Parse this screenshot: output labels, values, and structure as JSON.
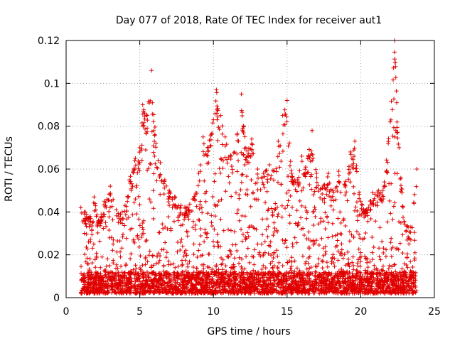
{
  "chart_data": {
    "type": "scatter",
    "title": "Day 077 of 2018, Rate Of TEC Index for receiver aut1",
    "xlabel": "GPS time / hours",
    "ylabel": "ROTI / TECUs",
    "xlim": [
      0,
      25
    ],
    "ylim": [
      0,
      0.12
    ],
    "xticks": [
      0,
      5,
      10,
      15,
      20,
      25
    ],
    "yticks": [
      0,
      0.02,
      0.04,
      0.06,
      0.08,
      0.1,
      0.12
    ],
    "grid": true,
    "marker": "plus",
    "series": [
      {
        "name": "aut1",
        "color": "#e00000",
        "x_range": [
          1.0,
          23.8
        ],
        "baseline_min": 0.002,
        "baseline_max": 0.012,
        "envelope": [
          [
            1.0,
            0.042
          ],
          [
            1.3,
            0.04
          ],
          [
            1.6,
            0.037
          ],
          [
            1.9,
            0.047
          ],
          [
            2.2,
            0.036
          ],
          [
            2.6,
            0.045
          ],
          [
            3.0,
            0.052
          ],
          [
            3.4,
            0.041
          ],
          [
            3.8,
            0.04
          ],
          [
            4.0,
            0.043
          ],
          [
            4.3,
            0.055
          ],
          [
            4.7,
            0.065
          ],
          [
            5.0,
            0.07
          ],
          [
            5.2,
            0.09
          ],
          [
            5.5,
            0.085
          ],
          [
            5.8,
            0.106
          ],
          [
            6.1,
            0.072
          ],
          [
            6.4,
            0.063
          ],
          [
            6.7,
            0.055
          ],
          [
            7.0,
            0.05
          ],
          [
            7.4,
            0.047
          ],
          [
            7.8,
            0.043
          ],
          [
            8.2,
            0.042
          ],
          [
            8.6,
            0.046
          ],
          [
            9.0,
            0.058
          ],
          [
            9.3,
            0.075
          ],
          [
            9.6,
            0.07
          ],
          [
            10.0,
            0.083
          ],
          [
            10.2,
            0.097
          ],
          [
            10.5,
            0.085
          ],
          [
            10.8,
            0.075
          ],
          [
            11.2,
            0.066
          ],
          [
            11.6,
            0.076
          ],
          [
            11.9,
            0.095
          ],
          [
            12.2,
            0.07
          ],
          [
            12.6,
            0.074
          ],
          [
            13.0,
            0.06
          ],
          [
            13.4,
            0.058
          ],
          [
            13.8,
            0.062
          ],
          [
            14.1,
            0.059
          ],
          [
            14.4,
            0.073
          ],
          [
            14.7,
            0.085
          ],
          [
            15.0,
            0.092
          ],
          [
            15.3,
            0.058
          ],
          [
            15.7,
            0.055
          ],
          [
            16.0,
            0.066
          ],
          [
            16.4,
            0.065
          ],
          [
            16.7,
            0.078
          ],
          [
            17.0,
            0.058
          ],
          [
            17.4,
            0.051
          ],
          [
            17.8,
            0.058
          ],
          [
            18.1,
            0.05
          ],
          [
            18.5,
            0.059
          ],
          [
            18.9,
            0.053
          ],
          [
            19.3,
            0.068
          ],
          [
            19.6,
            0.073
          ],
          [
            20.0,
            0.045
          ],
          [
            20.4,
            0.041
          ],
          [
            20.8,
            0.049
          ],
          [
            21.2,
            0.05
          ],
          [
            21.6,
            0.054
          ],
          [
            22.0,
            0.082
          ],
          [
            22.3,
            0.12
          ],
          [
            22.6,
            0.07
          ],
          [
            23.0,
            0.034
          ],
          [
            23.4,
            0.033
          ],
          [
            23.8,
            0.06
          ]
        ]
      }
    ]
  }
}
